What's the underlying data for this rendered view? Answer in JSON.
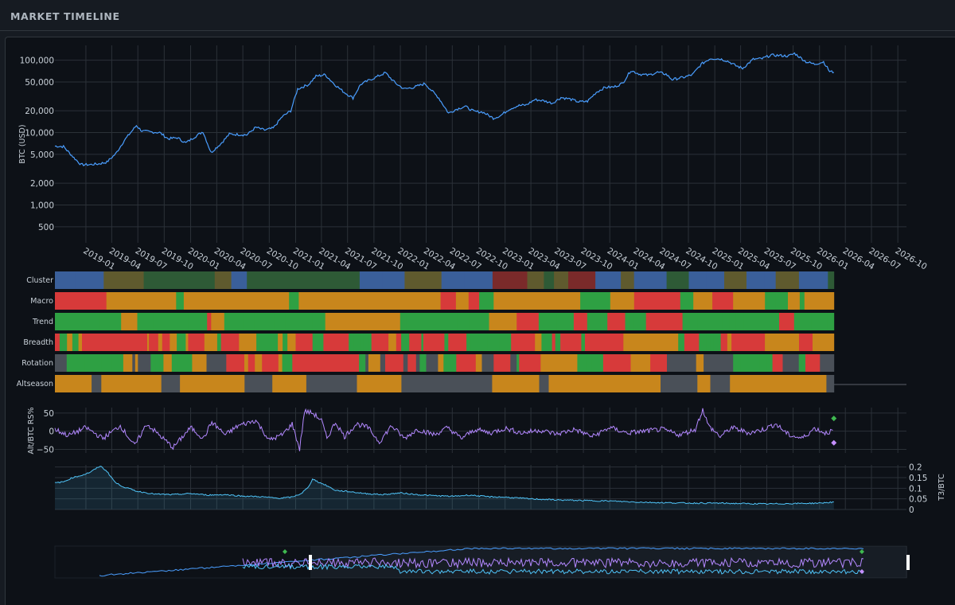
{
  "header": {
    "title": "MARKET TIMELINE"
  },
  "colors": {
    "background": "#0d1117",
    "grid": "#2b3138",
    "btc_line": "#4a9eff",
    "altbtc_line": "#b388ff",
    "t3btc_line": "#4fc3f7",
    "regime_green": "#2ea043",
    "regime_red": "#d73a3a",
    "regime_amber": "#c8861c",
    "regime_blue": "#3a5f9a",
    "regime_gray": "#4a5058",
    "cluster_darkred": "#7a2a2a",
    "cluster_olive": "#5f5a2e",
    "cluster_darkgreen": "#2e5a36"
  },
  "chart_data": [
    {
      "type": "line",
      "name": "btc-price",
      "ylabel": "BTC (USD)",
      "yscale": "log",
      "ylim": [
        300,
        160000
      ],
      "yticks": [
        500,
        1000,
        2000,
        5000,
        10000,
        20000,
        50000,
        100000
      ],
      "ytick_labels": [
        "500",
        "1,000",
        "2,000",
        "5,000",
        "10,000",
        "20,000",
        "50,000",
        "100,000"
      ],
      "xlim": [
        "2018-09-15",
        "2026-10-31"
      ],
      "xtick_labels": [
        "2019-01",
        "2019-04",
        "2019-07",
        "2019-10",
        "2020-01",
        "2020-04",
        "2020-07",
        "2020-10",
        "2021-01",
        "2021-04",
        "2021-07",
        "2021-10",
        "2022-01",
        "2022-04",
        "2022-07",
        "2022-10",
        "2023-01",
        "2023-04",
        "2023-07",
        "2023-10",
        "2024-01",
        "2024-04",
        "2024-07",
        "2024-10",
        "2025-01",
        "2025-04",
        "2025-07",
        "2025-10",
        "2026-01",
        "2026-04",
        "2026-07",
        "2026-10"
      ],
      "x": [
        "2018-09-15",
        "2018-10-15",
        "2018-11-20",
        "2018-12-15",
        "2019-01-15",
        "2019-02-15",
        "2019-03-15",
        "2019-04-15",
        "2019-05-15",
        "2019-06-26",
        "2019-07-15",
        "2019-08-15",
        "2019-09-15",
        "2019-10-15",
        "2019-11-15",
        "2019-12-15",
        "2020-01-15",
        "2020-02-13",
        "2020-03-12",
        "2020-04-15",
        "2020-05-15",
        "2020-06-15",
        "2020-07-15",
        "2020-08-15",
        "2020-09-15",
        "2020-10-15",
        "2020-11-15",
        "2020-12-15",
        "2021-01-08",
        "2021-02-15",
        "2021-03-13",
        "2021-04-14",
        "2021-05-15",
        "2021-06-15",
        "2021-07-20",
        "2021-08-15",
        "2021-09-06",
        "2021-10-15",
        "2021-11-10",
        "2021-12-15",
        "2022-01-15",
        "2022-02-15",
        "2022-03-28",
        "2022-04-15",
        "2022-05-15",
        "2022-06-18",
        "2022-07-15",
        "2022-08-15",
        "2022-09-15",
        "2022-10-15",
        "2022-11-21",
        "2022-12-15",
        "2023-01-15",
        "2023-02-15",
        "2023-03-15",
        "2023-04-15",
        "2023-05-15",
        "2023-06-15",
        "2023-07-15",
        "2023-08-15",
        "2023-09-15",
        "2023-10-15",
        "2023-11-15",
        "2023-12-15",
        "2024-01-15",
        "2024-02-15",
        "2024-03-14",
        "2024-04-15",
        "2024-05-15",
        "2024-06-15",
        "2024-07-15",
        "2024-08-05",
        "2024-09-15",
        "2024-10-15",
        "2024-11-15",
        "2024-12-17",
        "2025-01-20",
        "2025-02-15",
        "2025-03-15",
        "2025-04-08",
        "2025-05-15",
        "2025-06-15",
        "2025-07-15",
        "2025-08-15",
        "2025-09-15",
        "2025-10-06",
        "2025-11-15",
        "2025-12-15",
        "2026-01-15",
        "2026-02-05",
        "2026-02-20"
      ],
      "values": [
        6500,
        6400,
        4500,
        3600,
        3600,
        3700,
        3900,
        5100,
        7800,
        12500,
        10500,
        10200,
        10000,
        8200,
        8500,
        7200,
        8700,
        10300,
        5300,
        7000,
        9500,
        9400,
        9300,
        11800,
        10800,
        11500,
        16500,
        20000,
        40000,
        46000,
        60000,
        63000,
        47000,
        37000,
        30000,
        46000,
        51000,
        60000,
        67000,
        48000,
        40000,
        42000,
        47500,
        40000,
        30000,
        18500,
        21000,
        23000,
        19500,
        19200,
        15800,
        17000,
        21000,
        23500,
        24000,
        28500,
        27500,
        25500,
        30500,
        29000,
        26500,
        27000,
        36000,
        42000,
        42500,
        48000,
        72000,
        64000,
        62000,
        68000,
        64000,
        54000,
        58000,
        63000,
        88000,
        106000,
        104000,
        97000,
        84000,
        77000,
        103000,
        105000,
        117000,
        116000,
        114000,
        124000,
        95000,
        88000,
        95000,
        70000,
        68000
      ]
    },
    {
      "type": "heatmap",
      "name": "regime-strips",
      "rows": [
        "Cluster",
        "Macro",
        "Trend",
        "Breadth",
        "Rotation",
        "Altseason"
      ],
      "xlim": [
        "2018-09-15",
        "2026-10-31"
      ],
      "data_end": "2026-02-20"
    },
    {
      "type": "line",
      "name": "alt-btc-rs",
      "ylabel": "Alt/BTC RS%",
      "ylim": [
        -60,
        65
      ],
      "yticks": [
        -50,
        0,
        50
      ],
      "ytick_labels": [
        "−50",
        "0",
        "50"
      ],
      "x": [
        "2018-09-15",
        "2018-11-01",
        "2019-01-01",
        "2019-03-01",
        "2019-05-01",
        "2019-06-20",
        "2019-08-01",
        "2019-09-20",
        "2019-11-01",
        "2020-01-01",
        "2020-02-15",
        "2020-03-15",
        "2020-05-01",
        "2020-06-15",
        "2020-08-15",
        "2020-10-01",
        "2020-11-15",
        "2020-12-20",
        "2021-01-15",
        "2021-02-01",
        "2021-03-01",
        "2021-04-01",
        "2021-04-20",
        "2021-05-20",
        "2021-06-20",
        "2021-08-01",
        "2021-09-10",
        "2021-10-20",
        "2021-12-01",
        "2022-01-15",
        "2022-03-01",
        "2022-05-01",
        "2022-06-15",
        "2022-08-01",
        "2022-09-20",
        "2022-11-10",
        "2023-01-01",
        "2023-03-01",
        "2023-05-01",
        "2023-07-01",
        "2023-09-01",
        "2023-11-01",
        "2024-01-01",
        "2024-03-01",
        "2024-05-01",
        "2024-07-01",
        "2024-09-01",
        "2024-10-25",
        "2024-11-20",
        "2024-12-10",
        "2025-01-20",
        "2025-03-01",
        "2025-05-01",
        "2025-06-20",
        "2025-08-01",
        "2025-09-15",
        "2025-11-01",
        "2025-12-15",
        "2026-01-20",
        "2026-02-20"
      ],
      "values": [
        5,
        -12,
        10,
        -20,
        15,
        -40,
        20,
        -15,
        -45,
        10,
        -20,
        25,
        -10,
        15,
        30,
        -25,
        -10,
        20,
        -50,
        55,
        50,
        30,
        -20,
        25,
        -15,
        20,
        10,
        -30,
        15,
        -20,
        5,
        -10,
        10,
        -20,
        5,
        -5,
        8,
        -5,
        3,
        -8,
        5,
        -15,
        10,
        -5,
        0,
        5,
        -10,
        5,
        60,
        15,
        -15,
        10,
        -5,
        5,
        20,
        -10,
        -20,
        8,
        -5,
        2
      ],
      "markers": [
        {
          "label": "green-diamond",
          "x": "2026-02-20",
          "y": 35
        },
        {
          "label": "violet-diamond",
          "x": "2026-02-20",
          "y": -32
        }
      ]
    },
    {
      "type": "area",
      "name": "t3-btc",
      "ylabel": "T3/BTC",
      "ylim": [
        0,
        0.21
      ],
      "yticks": [
        0,
        0.05,
        0.1,
        0.15,
        0.2
      ],
      "ytick_labels": [
        "0",
        "0.05",
        "0.1",
        "0.15",
        "0.2"
      ],
      "x": [
        "2018-09-15",
        "2018-10-15",
        "2018-11-15",
        "2018-12-15",
        "2019-01-15",
        "2019-02-20",
        "2019-03-15",
        "2019-04-15",
        "2019-05-15",
        "2019-07-01",
        "2019-09-01",
        "2019-11-01",
        "2020-01-01",
        "2020-03-01",
        "2020-05-01",
        "2020-07-01",
        "2020-09-01",
        "2020-11-01",
        "2020-12-20",
        "2021-01-20",
        "2021-02-15",
        "2021-03-01",
        "2021-03-20",
        "2021-04-15",
        "2021-05-20",
        "2021-07-01",
        "2021-09-01",
        "2021-11-01",
        "2022-01-01",
        "2022-03-01",
        "2022-05-01",
        "2022-07-01",
        "2022-09-01",
        "2022-11-01",
        "2023-01-01",
        "2023-04-01",
        "2023-07-01",
        "2023-10-01",
        "2024-01-01",
        "2024-04-01",
        "2024-07-01",
        "2024-10-01",
        "2025-01-01",
        "2025-04-01",
        "2025-07-01",
        "2025-10-01",
        "2026-01-01",
        "2026-02-20"
      ],
      "values": [
        0.125,
        0.13,
        0.15,
        0.16,
        0.175,
        0.205,
        0.18,
        0.125,
        0.105,
        0.085,
        0.072,
        0.07,
        0.075,
        0.068,
        0.07,
        0.063,
        0.06,
        0.053,
        0.058,
        0.075,
        0.105,
        0.145,
        0.13,
        0.115,
        0.09,
        0.085,
        0.075,
        0.07,
        0.078,
        0.07,
        0.065,
        0.062,
        0.068,
        0.06,
        0.058,
        0.05,
        0.045,
        0.042,
        0.04,
        0.035,
        0.032,
        0.03,
        0.03,
        0.028,
        0.026,
        0.028,
        0.03,
        0.035
      ]
    }
  ]
}
